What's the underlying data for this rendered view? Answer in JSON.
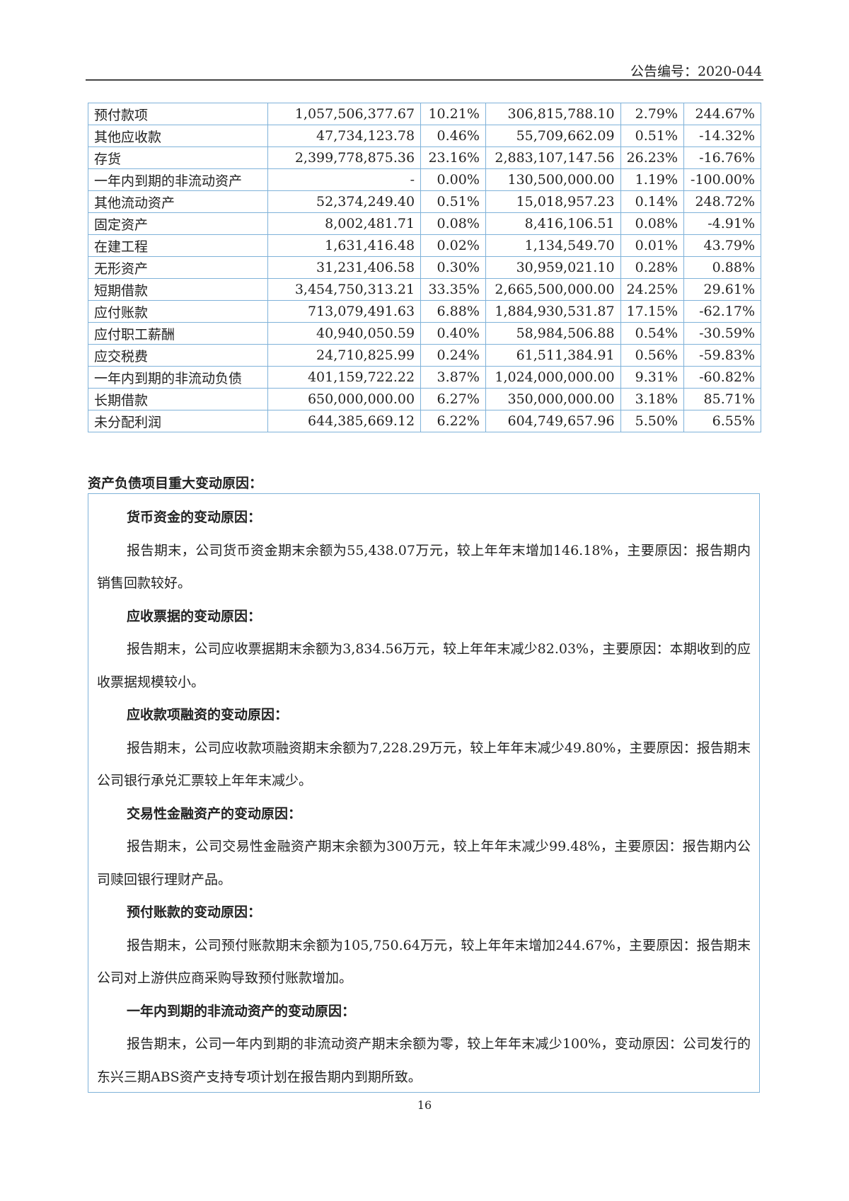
{
  "header": {
    "doc_number": "公告编号：2020-044"
  },
  "table": {
    "rows": [
      [
        "预付款项",
        "1,057,506,377.67",
        "10.21%",
        "306,815,788.10",
        "2.79%",
        "244.67%"
      ],
      [
        "其他应收款",
        "47,734,123.78",
        "0.46%",
        "55,709,662.09",
        "0.51%",
        "-14.32%"
      ],
      [
        "存货",
        "2,399,778,875.36",
        "23.16%",
        "2,883,107,147.56",
        "26.23%",
        "-16.76%"
      ],
      [
        "一年内到期的非流动资产",
        "-",
        "0.00%",
        "130,500,000.00",
        "1.19%",
        "-100.00%"
      ],
      [
        "其他流动资产",
        "52,374,249.40",
        "0.51%",
        "15,018,957.23",
        "0.14%",
        "248.72%"
      ],
      [
        "固定资产",
        "8,002,481.71",
        "0.08%",
        "8,416,106.51",
        "0.08%",
        "-4.91%"
      ],
      [
        "在建工程",
        "1,631,416.48",
        "0.02%",
        "1,134,549.70",
        "0.01%",
        "43.79%"
      ],
      [
        "无形资产",
        "31,231,406.58",
        "0.30%",
        "30,959,021.10",
        "0.28%",
        "0.88%"
      ],
      [
        "短期借款",
        "3,454,750,313.21",
        "33.35%",
        "2,665,500,000.00",
        "24.25%",
        "29.61%"
      ],
      [
        "应付账款",
        "713,079,491.63",
        "6.88%",
        "1,884,930,531.87",
        "17.15%",
        "-62.17%"
      ],
      [
        "应付职工薪酬",
        "40,940,050.59",
        "0.40%",
        "58,984,506.88",
        "0.54%",
        "-30.59%"
      ],
      [
        "应交税费",
        "24,710,825.99",
        "0.24%",
        "61,511,384.91",
        "0.56%",
        "-59.83%"
      ],
      [
        "一年内到期的非流动负债",
        "401,159,722.22",
        "3.87%",
        "1,024,000,000.00",
        "9.31%",
        "-60.82%"
      ],
      [
        "长期借款",
        "650,000,000.00",
        "6.27%",
        "350,000,000.00",
        "3.18%",
        "85.71%"
      ],
      [
        "未分配利润",
        "644,385,669.12",
        "6.22%",
        "604,749,657.96",
        "5.50%",
        "6.55%"
      ]
    ]
  },
  "section": {
    "title": "资产负债项目重大变动原因：",
    "items": [
      {
        "heading": "货币资金的变动原因：",
        "text": "报告期末，公司货币资金期末余额为55,438.07万元，较上年年末增加146.18%，主要原因：报告期内销售回款较好。"
      },
      {
        "heading": "应收票据的变动原因：",
        "text": "报告期末，公司应收票据期末余额为3,834.56万元，较上年年末减少82.03%，主要原因：本期收到的应收票据规模较小。"
      },
      {
        "heading": "应收款项融资的变动原因：",
        "text": "报告期末，公司应收款项融资期末余额为7,228.29万元，较上年年末减少49.80%，主要原因：报告期末公司银行承兑汇票较上年年末减少。"
      },
      {
        "heading": "交易性金融资产的变动原因：",
        "text": "报告期末，公司交易性金融资产期末余额为300万元，较上年年末减少99.48%，主要原因：报告期内公司赎回银行理财产品。"
      },
      {
        "heading": "预付账款的变动原因：",
        "text": "报告期末，公司预付账款期末余额为105,750.64万元，较上年年末增加244.67%，主要原因：报告期末公司对上游供应商采购导致预付账款增加。"
      },
      {
        "heading": "一年内到期的非流动资产的变动原因：",
        "text": "报告期末，公司一年内到期的非流动资产期末余额为零，较上年年末减少100%，变动原因：公司发行的东兴三期ABS资产支持专项计划在报告期内到期所致。"
      }
    ]
  },
  "footer": {
    "page_number": "16"
  }
}
